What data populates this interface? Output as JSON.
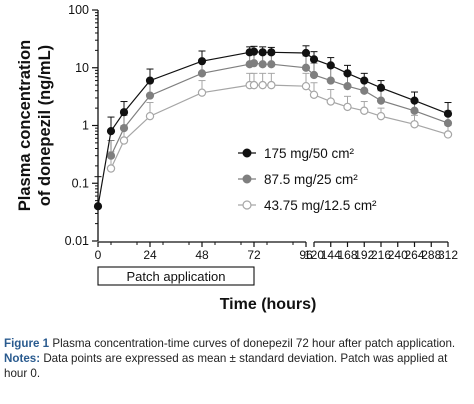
{
  "chart_data": {
    "type": "line",
    "ylabel": "Plasma concentration of donepezil (ng/mL)",
    "xlabel": "Time (hours)",
    "yscale": "log",
    "ylim": [
      0.01,
      100
    ],
    "y_ticks": [
      "0.01",
      "0.1",
      "1",
      "10",
      "100"
    ],
    "x_axis_break": [
      96,
      120
    ],
    "x_ticks": [
      "0",
      "24",
      "48",
      "72",
      "96",
      "120",
      "144",
      "168",
      "192",
      "216",
      "240",
      "264",
      "288",
      "312"
    ],
    "x_tick_labels_shown": [
      "0",
      "24",
      "48",
      "72",
      "96",
      "120",
      "144",
      "168",
      "192",
      "216",
      "240",
      "264",
      "288",
      "312"
    ],
    "grid": false,
    "legend_position": "center-right",
    "annotation": "Patch application",
    "annotation_range": [
      0,
      72
    ],
    "series": [
      {
        "name": "175 mg/50 cm²",
        "marker": "filled-black",
        "color": "#111111",
        "x": [
          0,
          6,
          12,
          24,
          48,
          70,
          72,
          76,
          80,
          96,
          120,
          144,
          168,
          192,
          216,
          264,
          312
        ],
        "y": [
          0.04,
          0.8,
          1.7,
          6.0,
          13.0,
          18.5,
          19.0,
          18.5,
          18.5,
          18.0,
          14.0,
          11.0,
          8.0,
          6.0,
          4.5,
          2.7,
          1.6
        ],
        "err_hi": [
          0.13,
          1.4,
          2.6,
          9.5,
          19.5,
          23.0,
          23.5,
          23.0,
          22.5,
          24.0,
          19.0,
          15.0,
          11.0,
          8.0,
          6.0,
          3.8,
          2.5
        ]
      },
      {
        "name": "87.5 mg/25 cm²",
        "marker": "filled-gray",
        "color": "#7f7f7f",
        "x": [
          6,
          12,
          24,
          48,
          70,
          72,
          76,
          80,
          96,
          120,
          144,
          168,
          192,
          216,
          264,
          312
        ],
        "y": [
          0.3,
          0.9,
          3.3,
          8.0,
          11.5,
          12.0,
          11.5,
          11.5,
          10.0,
          7.5,
          6.0,
          4.8,
          4.0,
          2.7,
          1.8,
          1.1
        ],
        "err_hi": [
          0.55,
          1.5,
          5.5,
          13.0,
          17.0,
          18.0,
          17.0,
          17.0,
          16.0,
          12.0,
          10.0,
          7.5,
          6.0,
          4.0,
          2.8,
          1.8
        ]
      },
      {
        "name": "43.75 mg/12.5 cm²",
        "marker": "open",
        "color": "#a6a6a6",
        "x": [
          6,
          12,
          24,
          48,
          70,
          72,
          76,
          80,
          96,
          120,
          144,
          168,
          192,
          216,
          264,
          312
        ],
        "y": [
          0.18,
          0.55,
          1.45,
          3.7,
          5.0,
          5.0,
          5.0,
          5.0,
          4.8,
          3.4,
          2.6,
          2.1,
          1.8,
          1.45,
          1.05,
          0.7
        ],
        "err_hi": [
          0.35,
          1.0,
          2.5,
          6.0,
          8.0,
          8.0,
          8.0,
          8.0,
          8.0,
          5.5,
          4.2,
          3.2,
          2.6,
          2.0,
          1.5,
          1.0
        ]
      }
    ]
  },
  "caption": {
    "figure_label": "Figure 1",
    "figure_text": "Plasma concentration-time curves of donepezil 72 hour after patch application.",
    "notes_label": "Notes:",
    "notes_text": "Data points are expressed as mean ± standard deviation. Patch was applied at hour 0."
  }
}
